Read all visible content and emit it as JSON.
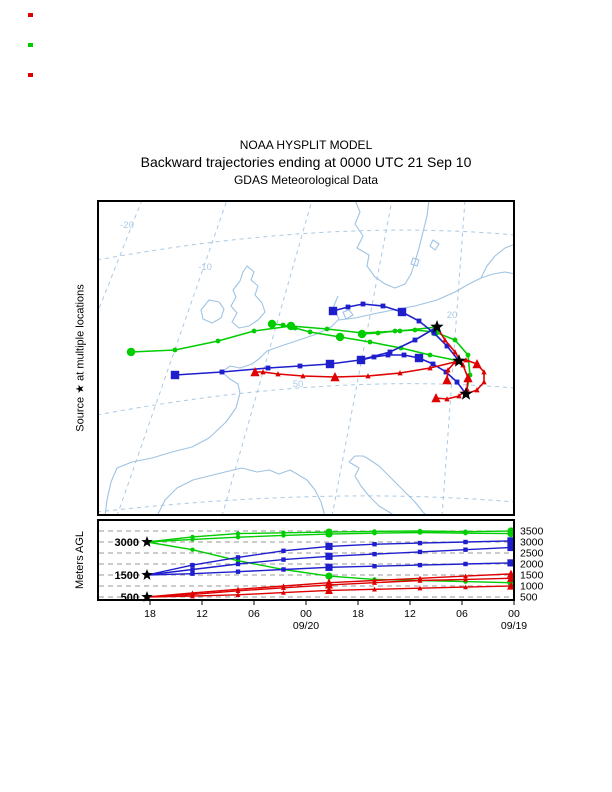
{
  "title": {
    "line1": "NOAA HYSPLIT MODEL",
    "line2": "Backward trajectories ending at 0000 UTC 21 Sep 10",
    "line3": "GDAS Meteorological Data"
  },
  "side_labels": {
    "source": "Source ★ at multiple locations",
    "meters": "Meters AGL"
  },
  "colors": {
    "red": "#df0000",
    "blue": "#1e1ecd",
    "green": "#00cd00",
    "coast": "#9fc3e2",
    "map_grid": "#aac9e4",
    "agl_grid": "#9a9a9a",
    "black": "#000000"
  },
  "chart_data": {
    "type": "line",
    "title": "Backward trajectories ending at 0000 UTC 21 Sep 10",
    "subtitle": "GDAS Meteorological Data",
    "map_panel": {
      "coordinate_space": "panel pixels 418x316 (trajectory paths as drawn on map)",
      "grid_labels": [
        {
          "text": "-20",
          "x": 30,
          "y": 28
        },
        {
          "text": "-10",
          "x": 108,
          "y": 70
        },
        {
          "text": "20",
          "x": 355,
          "y": 118
        },
        {
          "text": "50",
          "x": 201,
          "y": 187
        }
      ],
      "sources": [
        {
          "x": 340,
          "y": 127
        },
        {
          "x": 362,
          "y": 161
        },
        {
          "x": 369,
          "y": 194
        }
      ],
      "trajectories": [
        {
          "id": "green-1",
          "color": "green",
          "marker": "circle",
          "points": [
            [
              340,
              127
            ],
            [
              303,
              131
            ],
            [
              266,
              133
            ],
            [
              230,
              129
            ],
            [
              194,
              126
            ],
            [
              157,
              131
            ],
            [
              121,
              141
            ],
            [
              78,
              150
            ],
            [
              34,
              152
            ]
          ]
        },
        {
          "id": "green-2",
          "color": "green",
          "marker": "circle",
          "points": [
            [
              362,
              161
            ],
            [
              333,
              155
            ],
            [
              304,
              148
            ],
            [
              273,
              142
            ],
            [
              243,
              137
            ],
            [
              213,
              132
            ],
            [
              198,
              128
            ],
            [
              186,
              125
            ],
            [
              175,
              124
            ]
          ]
        },
        {
          "id": "green-3",
          "color": "green",
          "marker": "circle",
          "points": [
            [
              369,
              194
            ],
            [
              373,
              175
            ],
            [
              371,
              155
            ],
            [
              358,
              140
            ],
            [
              338,
              132
            ],
            [
              318,
              130
            ],
            [
              298,
              131
            ],
            [
              281,
              133
            ],
            [
              265,
              134
            ]
          ]
        },
        {
          "id": "blue-1",
          "color": "blue",
          "marker": "square",
          "points": [
            [
              340,
              127
            ],
            [
              318,
              140
            ],
            [
              293,
              152
            ],
            [
              263,
              160
            ],
            [
              233,
              164
            ],
            [
              203,
              166
            ],
            [
              171,
              168
            ],
            [
              125,
              172
            ],
            [
              78,
              175
            ]
          ]
        },
        {
          "id": "blue-2",
          "color": "blue",
          "marker": "square",
          "points": [
            [
              362,
              161
            ],
            [
              350,
              146
            ],
            [
              337,
              133
            ],
            [
              322,
              121
            ],
            [
              305,
              112
            ],
            [
              286,
              106
            ],
            [
              266,
              104
            ],
            [
              251,
              107
            ],
            [
              236,
              111
            ]
          ]
        },
        {
          "id": "blue-3",
          "color": "blue",
          "marker": "square",
          "points": [
            [
              369,
              194
            ],
            [
              360,
              182
            ],
            [
              349,
              172
            ],
            [
              336,
              164
            ],
            [
              322,
              158
            ],
            [
              307,
              155
            ],
            [
              291,
              155
            ],
            [
              277,
              157
            ],
            [
              264,
              160
            ]
          ]
        },
        {
          "id": "red-1",
          "color": "red",
          "marker": "triangle",
          "points": [
            [
              340,
              127
            ],
            [
              348,
              140
            ],
            [
              358,
              152
            ],
            [
              366,
              165
            ],
            [
              371,
              178
            ],
            [
              370,
              189
            ],
            [
              362,
              196
            ],
            [
              350,
              199
            ],
            [
              339,
              198
            ]
          ]
        },
        {
          "id": "red-2",
          "color": "red",
          "marker": "triangle",
          "points": [
            [
              362,
              161
            ],
            [
              333,
              168
            ],
            [
              303,
              173
            ],
            [
              271,
              176
            ],
            [
              238,
              177
            ],
            [
              206,
              176
            ],
            [
              181,
              174
            ],
            [
              166,
              172
            ],
            [
              158,
              172
            ]
          ]
        },
        {
          "id": "red-3",
          "color": "red",
          "marker": "triangle",
          "points": [
            [
              369,
              194
            ],
            [
              380,
              190
            ],
            [
              387,
              182
            ],
            [
              387,
              172
            ],
            [
              380,
              164
            ],
            [
              369,
              160
            ],
            [
              358,
              162
            ],
            [
              351,
              170
            ],
            [
              350,
              180
            ]
          ]
        }
      ]
    },
    "agl_panel": {
      "ylabel": "Meters AGL",
      "ylim": [
        500,
        3500
      ],
      "yticks_right": [
        3500,
        3000,
        2500,
        2000,
        1500,
        1000,
        500
      ],
      "start_labels": [
        {
          "text": "3000",
          "value": 3000
        },
        {
          "text": "1500",
          "value": 1500
        },
        {
          "text": "500",
          "value": 500
        }
      ],
      "xticks": [
        "18",
        "12",
        "06",
        "00",
        "18",
        "12",
        "06",
        "00"
      ],
      "date_labels": [
        {
          "text": "09/20",
          "tick_index": 3
        },
        {
          "text": "09/19",
          "tick_index": 7
        }
      ],
      "series": [
        {
          "id": "green-1",
          "color": "green",
          "marker": "circle",
          "start_height": 3000,
          "values": [
            3000,
            3230,
            3380,
            3420,
            3450,
            3480,
            3500,
            3470,
            3500
          ]
        },
        {
          "id": "green-2",
          "color": "green",
          "marker": "circle",
          "start_height": 3000,
          "values": [
            3000,
            3120,
            3220,
            3300,
            3360,
            3400,
            3430,
            3400,
            3380
          ]
        },
        {
          "id": "green-3",
          "color": "green",
          "marker": "circle",
          "start_height": 3000,
          "values": [
            3000,
            2650,
            2150,
            1750,
            1450,
            1300,
            1250,
            1200,
            1150
          ]
        },
        {
          "id": "blue-1",
          "color": "blue",
          "marker": "square",
          "start_height": 1500,
          "values": [
            1500,
            1950,
            2300,
            2600,
            2800,
            2900,
            2950,
            3000,
            3050
          ]
        },
        {
          "id": "blue-2",
          "color": "blue",
          "marker": "square",
          "start_height": 1500,
          "values": [
            1500,
            1750,
            2000,
            2200,
            2350,
            2450,
            2550,
            2650,
            2750
          ]
        },
        {
          "id": "blue-3",
          "color": "blue",
          "marker": "square",
          "start_height": 1500,
          "values": [
            1500,
            1560,
            1650,
            1750,
            1850,
            1900,
            1950,
            2000,
            2050
          ]
        },
        {
          "id": "red-1",
          "color": "red",
          "marker": "triangle",
          "start_height": 500,
          "values": [
            500,
            680,
            850,
            1000,
            1150,
            1250,
            1350,
            1450,
            1550
          ]
        },
        {
          "id": "red-2",
          "color": "red",
          "marker": "triangle",
          "start_height": 500,
          "values": [
            500,
            620,
            780,
            920,
            1050,
            1150,
            1250,
            1300,
            1350
          ]
        },
        {
          "id": "red-3",
          "color": "red",
          "marker": "triangle",
          "start_height": 500,
          "values": [
            500,
            540,
            600,
            700,
            800,
            850,
            900,
            950,
            1000
          ]
        }
      ]
    }
  }
}
